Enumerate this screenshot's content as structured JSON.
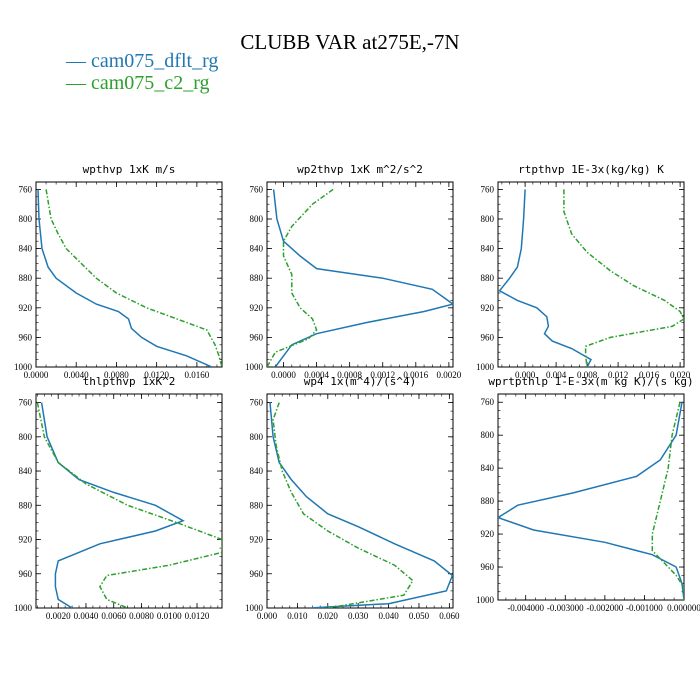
{
  "figure": {
    "title": "CLUBB VAR at275E,-7N",
    "colors": {
      "dflt": "#1f77b4",
      "c2": "#2ca02c"
    }
  },
  "legend": [
    {
      "label": "— cam075_dflt_rg",
      "color": "#1f77b4"
    },
    {
      "label": "— cam075_c2_rg",
      "color": "#2ca02c"
    }
  ],
  "chart_data": [
    {
      "type": "line",
      "title": "wpthvp  1xK m/s",
      "xlim": [
        0,
        0.0185
      ],
      "xticks": [
        "0.0000",
        "0.0040",
        "0.0080",
        "0.0120",
        "0.0160"
      ],
      "xtick_values": [
        0,
        0.004,
        0.008,
        0.012,
        0.016
      ],
      "ylim": [
        1000,
        750
      ],
      "yticks": [
        760,
        800,
        840,
        880,
        920,
        960,
        1000
      ],
      "series": [
        {
          "name": "cam075_dflt_rg",
          "color": "#1f77b4",
          "points": [
            [
              0.0002,
              760
            ],
            [
              0.0003,
              800
            ],
            [
              0.0006,
              840
            ],
            [
              0.0012,
              865
            ],
            [
              0.002,
              880
            ],
            [
              0.004,
              900
            ],
            [
              0.006,
              915
            ],
            [
              0.0082,
              925
            ],
            [
              0.0092,
              935
            ],
            [
              0.0095,
              948
            ],
            [
              0.0105,
              960
            ],
            [
              0.012,
              972
            ],
            [
              0.015,
              985
            ],
            [
              0.0175,
              1000
            ]
          ]
        },
        {
          "name": "cam075_c2_rg",
          "color": "#2ca02c",
          "points": [
            [
              0.001,
              760
            ],
            [
              0.0015,
              800
            ],
            [
              0.0022,
              820
            ],
            [
              0.003,
              840
            ],
            [
              0.0045,
              860
            ],
            [
              0.006,
              880
            ],
            [
              0.008,
              900
            ],
            [
              0.011,
              920
            ],
            [
              0.014,
              935
            ],
            [
              0.017,
              950
            ],
            [
              0.0178,
              970
            ],
            [
              0.0182,
              985
            ],
            [
              0.0185,
              1000
            ]
          ]
        }
      ]
    },
    {
      "type": "line",
      "title": "wp2thvp  1xK m^2/s^2",
      "xlim": [
        -0.0002,
        0.00205
      ],
      "xticks": [
        "0.0000",
        "0.0004",
        "0.0008",
        "0.0012",
        "0.0016",
        "0.0020"
      ],
      "xtick_values": [
        0,
        0.0004,
        0.0008,
        0.0012,
        0.0016,
        0.002
      ],
      "ylim": [
        1000,
        750
      ],
      "yticks": [
        760,
        800,
        840,
        880,
        920,
        960,
        1000
      ],
      "series": [
        {
          "name": "cam075_dflt_rg",
          "color": "#1f77b4",
          "points": [
            [
              -0.00012,
              760
            ],
            [
              -8e-05,
              800
            ],
            [
              0.0,
              830
            ],
            [
              0.0002,
              850
            ],
            [
              0.0004,
              867
            ],
            [
              0.0012,
              880
            ],
            [
              0.0018,
              895
            ],
            [
              0.00205,
              915
            ],
            [
              0.0017,
              925
            ],
            [
              0.001,
              940
            ],
            [
              0.0004,
              955
            ],
            [
              0.0001,
              970
            ],
            [
              0.0,
              985
            ],
            [
              -0.0001,
              1000
            ]
          ]
        },
        {
          "name": "cam075_c2_rg",
          "color": "#2ca02c",
          "points": [
            [
              0.0006,
              760
            ],
            [
              0.00035,
              780
            ],
            [
              0.0001,
              810
            ],
            [
              0.0,
              830
            ],
            [
              0.0,
              850
            ],
            [
              0.0001,
              875
            ],
            [
              0.0001,
              900
            ],
            [
              0.0002,
              920
            ],
            [
              0.00035,
              935
            ],
            [
              0.0004,
              950
            ],
            [
              0.0003,
              962
            ],
            [
              -0.0001,
              980
            ],
            [
              -0.0002,
              1000
            ]
          ]
        }
      ]
    },
    {
      "type": "line",
      "title": "rtpthvp  1E-3x(kg/kg) K",
      "xlim": [
        -0.0035,
        0.0205
      ],
      "xticks": [
        "0.000",
        "0.004",
        "0.008",
        "0.012",
        "0.016",
        "0.020"
      ],
      "xtick_values": [
        0,
        0.004,
        0.008,
        0.012,
        0.016,
        0.02
      ],
      "ylim": [
        1000,
        750
      ],
      "yticks": [
        760,
        800,
        840,
        880,
        920,
        960,
        1000
      ],
      "series": [
        {
          "name": "cam075_dflt_rg",
          "color": "#1f77b4",
          "points": [
            [
              0.0,
              760
            ],
            [
              -0.0002,
              800
            ],
            [
              -0.0005,
              840
            ],
            [
              -0.001,
              865
            ],
            [
              -0.002,
              880
            ],
            [
              -0.0033,
              897
            ],
            [
              -0.001,
              910
            ],
            [
              0.0015,
              920
            ],
            [
              0.0028,
              932
            ],
            [
              0.003,
              945
            ],
            [
              0.0025,
              955
            ],
            [
              0.0035,
              965
            ],
            [
              0.006,
              975
            ],
            [
              0.0085,
              990
            ],
            [
              0.008,
              1000
            ]
          ]
        },
        {
          "name": "cam075_c2_rg",
          "color": "#2ca02c",
          "points": [
            [
              0.005,
              760
            ],
            [
              0.005,
              790
            ],
            [
              0.006,
              820
            ],
            [
              0.008,
              845
            ],
            [
              0.011,
              870
            ],
            [
              0.014,
              890
            ],
            [
              0.018,
              910
            ],
            [
              0.02,
              925
            ],
            [
              0.0205,
              935
            ],
            [
              0.019,
              945
            ],
            [
              0.011,
              960
            ],
            [
              0.0078,
              972
            ],
            [
              0.0078,
              985
            ],
            [
              0.008,
              1000
            ]
          ]
        }
      ]
    },
    {
      "type": "line",
      "title": "thlpthvp  1xK^2",
      "xlim": [
        0.0004,
        0.0138
      ],
      "xticks": [
        "0.0020",
        "0.0040",
        "0.0060",
        "0.0080",
        "0.0100",
        "0.0120"
      ],
      "xtick_values": [
        0.002,
        0.004,
        0.006,
        0.008,
        0.01,
        0.012
      ],
      "ylim": [
        1000,
        750
      ],
      "yticks": [
        760,
        800,
        840,
        880,
        920,
        960,
        1000
      ],
      "series": [
        {
          "name": "cam075_dflt_rg",
          "color": "#1f77b4",
          "points": [
            [
              0.0008,
              760
            ],
            [
              0.0012,
              800
            ],
            [
              0.002,
              830
            ],
            [
              0.0035,
              850
            ],
            [
              0.006,
              865
            ],
            [
              0.009,
              880
            ],
            [
              0.011,
              898
            ],
            [
              0.009,
              910
            ],
            [
              0.005,
              925
            ],
            [
              0.002,
              945
            ],
            [
              0.0018,
              960
            ],
            [
              0.0018,
              975
            ],
            [
              0.002,
              990
            ],
            [
              0.003,
              1000
            ]
          ]
        },
        {
          "name": "cam075_c2_rg",
          "color": "#2ca02c",
          "points": [
            [
              0.0005,
              760
            ],
            [
              0.001,
              800
            ],
            [
              0.002,
              830
            ],
            [
              0.004,
              855
            ],
            [
              0.007,
              880
            ],
            [
              0.0105,
              900
            ],
            [
              0.0138,
              920
            ],
            [
              0.0138,
              935
            ],
            [
              0.01,
              950
            ],
            [
              0.0055,
              962
            ],
            [
              0.005,
              975
            ],
            [
              0.0055,
              990
            ],
            [
              0.007,
              1000
            ]
          ]
        }
      ]
    },
    {
      "type": "line",
      "title": "wp4  1x(m^4)/(s^4)",
      "xlim": [
        0,
        0.0612
      ],
      "xticks": [
        "0.000",
        "0.010",
        "0.020",
        "0.030",
        "0.040",
        "0.050",
        "0.060"
      ],
      "xtick_values": [
        0,
        0.01,
        0.02,
        0.03,
        0.04,
        0.05,
        0.06
      ],
      "ylim": [
        1000,
        750
      ],
      "yticks": [
        760,
        800,
        840,
        880,
        920,
        960,
        1000
      ],
      "series": [
        {
          "name": "cam075_dflt_rg",
          "color": "#1f77b4",
          "points": [
            [
              0.001,
              760
            ],
            [
              0.002,
              800
            ],
            [
              0.004,
              830
            ],
            [
              0.008,
              850
            ],
            [
              0.013,
              870
            ],
            [
              0.02,
              890
            ],
            [
              0.03,
              905
            ],
            [
              0.042,
              925
            ],
            [
              0.055,
              945
            ],
            [
              0.061,
              962
            ],
            [
              0.059,
              980
            ],
            [
              0.04,
              995
            ],
            [
              0.014,
              1000
            ]
          ]
        },
        {
          "name": "cam075_c2_rg",
          "color": "#2ca02c",
          "points": [
            [
              0.004,
              760
            ],
            [
              0.002,
              780
            ],
            [
              0.003,
              810
            ],
            [
              0.005,
              840
            ],
            [
              0.008,
              865
            ],
            [
              0.012,
              890
            ],
            [
              0.02,
              910
            ],
            [
              0.03,
              930
            ],
            [
              0.042,
              950
            ],
            [
              0.048,
              968
            ],
            [
              0.045,
              985
            ],
            [
              0.02,
              1000
            ]
          ]
        }
      ]
    },
    {
      "type": "line",
      "title": "wprtpthlp  1-E-3x(m kg K)/(s kg)",
      "xlim": [
        -0.0047,
        0.0
      ],
      "xticks": [
        "-0.004000",
        "-0.003000",
        "-0.002000",
        "-0.001000",
        "0.000000"
      ],
      "xtick_values": [
        -0.004,
        -0.003,
        -0.002,
        -0.001,
        0.0
      ],
      "ylim": [
        1000,
        750
      ],
      "yticks": [
        760,
        800,
        840,
        880,
        920,
        960,
        1000
      ],
      "series": [
        {
          "name": "cam075_dflt_rg",
          "color": "#1f77b4",
          "points": [
            [
              -5e-05,
              760
            ],
            [
              -0.0002,
              800
            ],
            [
              -0.0006,
              830
            ],
            [
              -0.0012,
              850
            ],
            [
              -0.0028,
              870
            ],
            [
              -0.0042,
              885
            ],
            [
              -0.0047,
              900
            ],
            [
              -0.0038,
              915
            ],
            [
              -0.002,
              930
            ],
            [
              -0.0008,
              945
            ],
            [
              -0.0002,
              960
            ],
            [
              -5e-05,
              980
            ],
            [
              0.0,
              1000
            ]
          ]
        },
        {
          "name": "cam075_c2_rg",
          "color": "#2ca02c",
          "points": [
            [
              -0.0001,
              760
            ],
            [
              -0.0003,
              800
            ],
            [
              -0.0004,
              840
            ],
            [
              -0.0006,
              880
            ],
            [
              -0.0008,
              920
            ],
            [
              -0.0008,
              940
            ],
            [
              -0.0005,
              955
            ],
            [
              -0.0002,
              970
            ],
            [
              0.0,
              985
            ],
            [
              0.0,
              1000
            ]
          ]
        }
      ]
    }
  ]
}
